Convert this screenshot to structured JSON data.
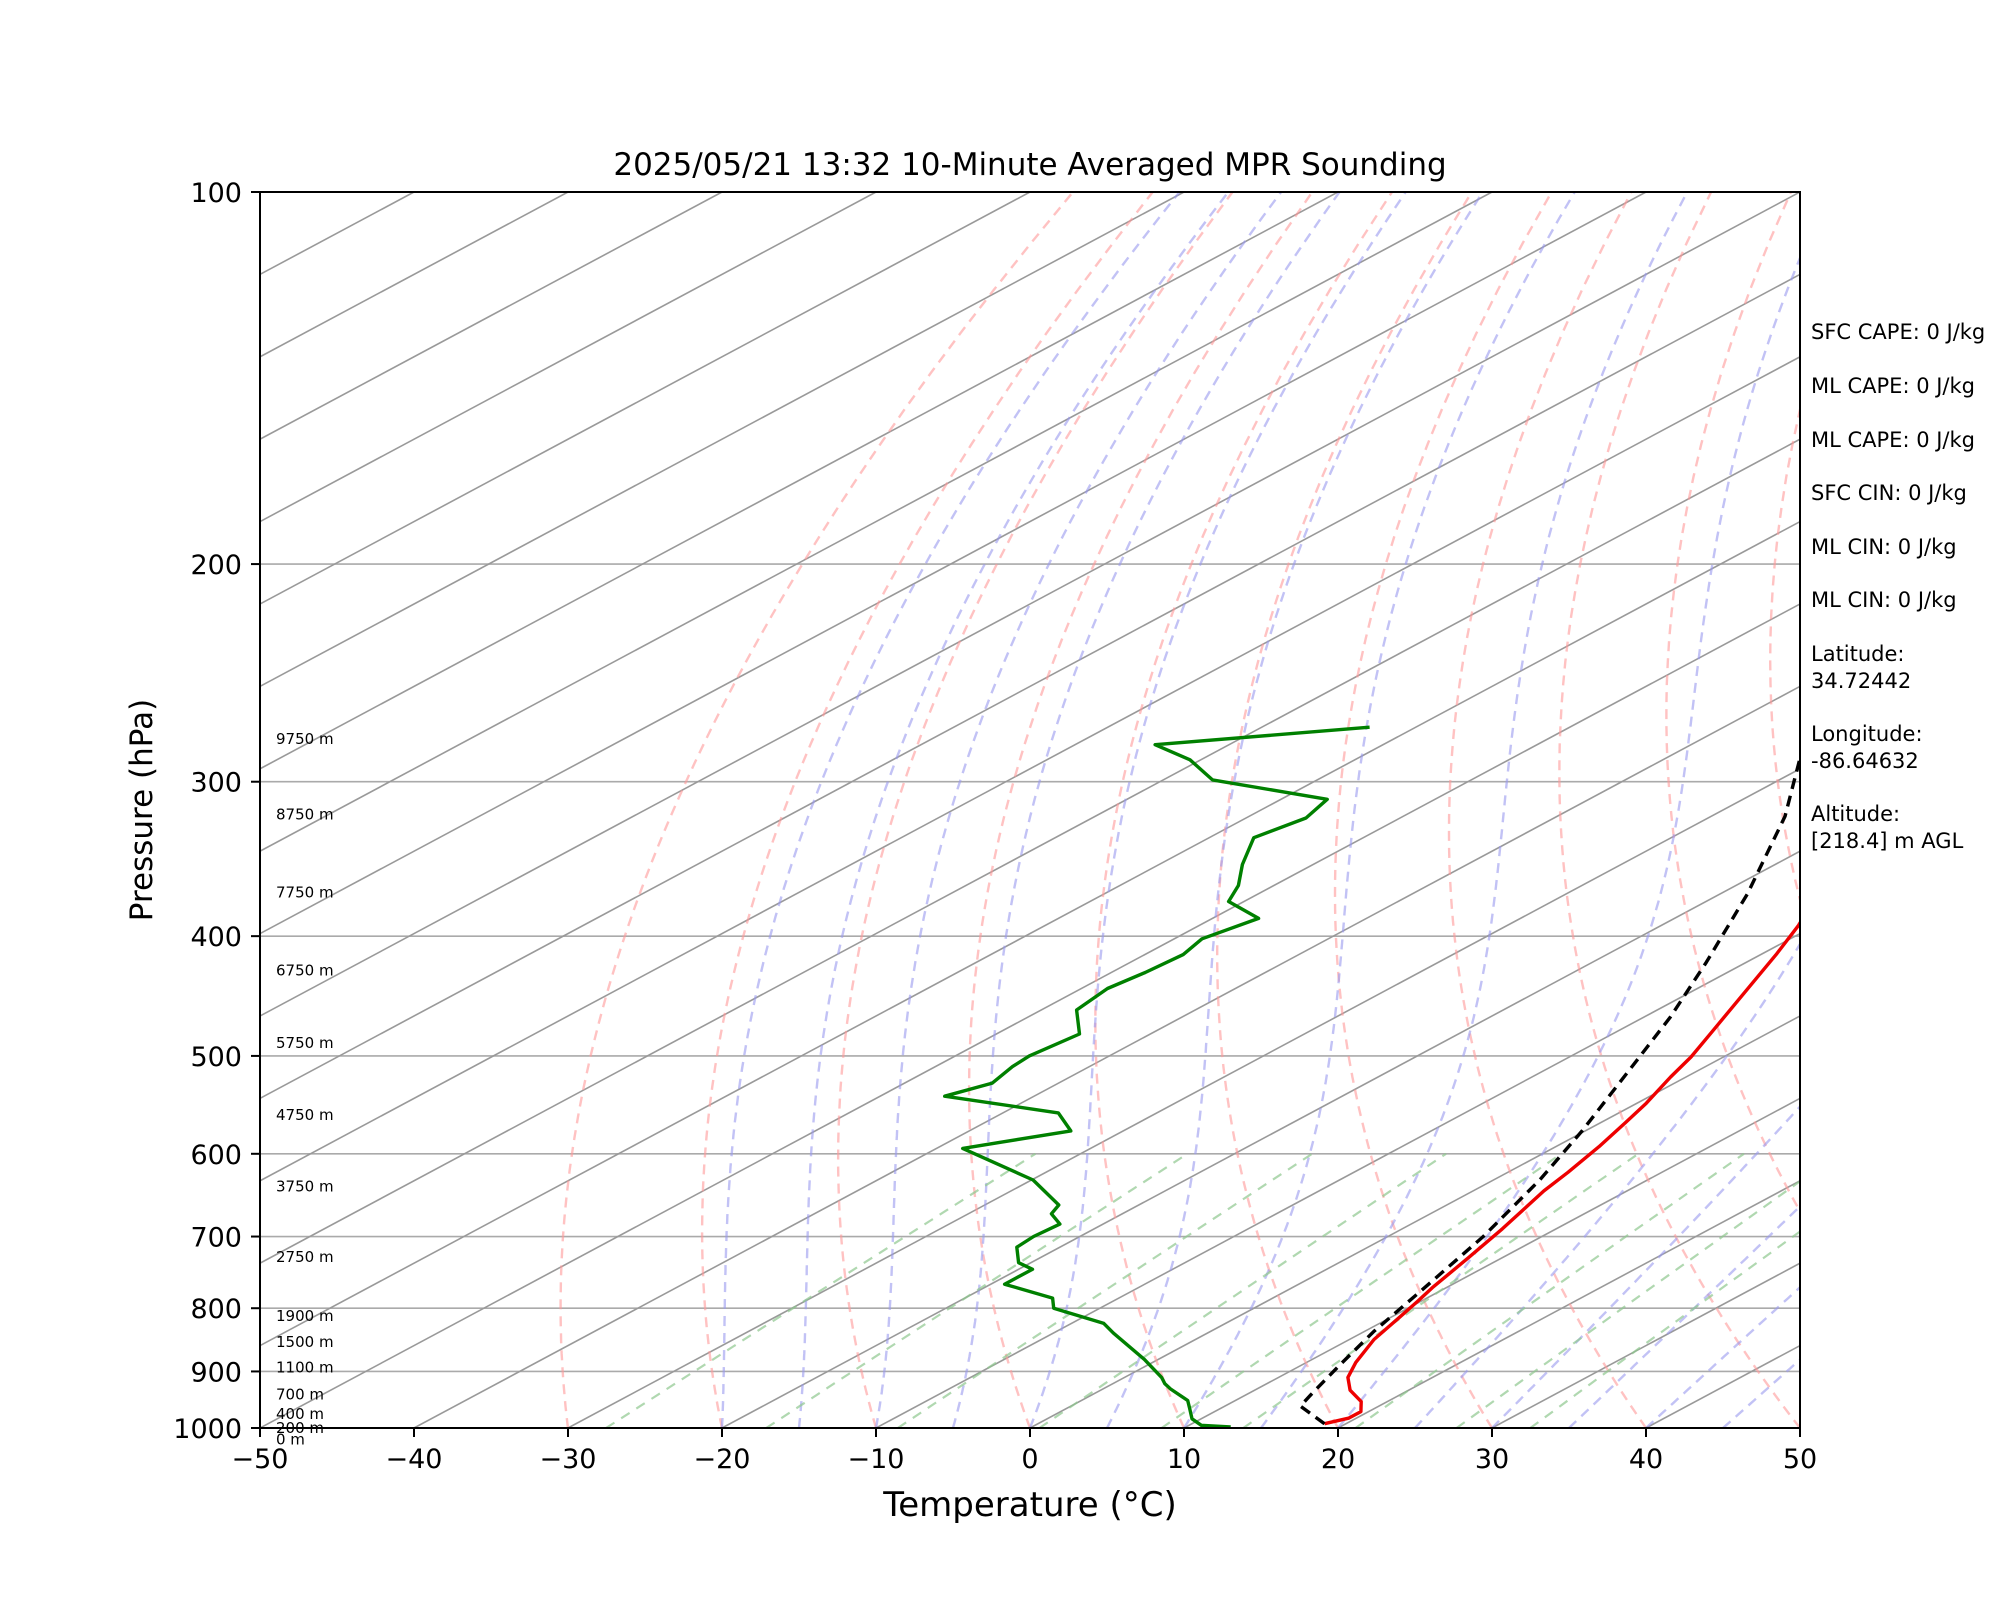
{
  "chart_data": {
    "type": "line",
    "title": "2025/05/21 13:32 10-Minute Averaged MPR Sounding",
    "xlabel": "Temperature (°C)",
    "ylabel": "Pressure (hPa)",
    "xlim": [
      -50,
      50
    ],
    "ylim": [
      1000,
      100
    ],
    "yscale": "log",
    "x_ticks": [
      "−50",
      "−40",
      "−30",
      "−20",
      "−10",
      "0",
      "10",
      "20",
      "30",
      "40",
      "50"
    ],
    "y_ticks": [
      "100",
      "200",
      "300",
      "400",
      "500",
      "600",
      "700",
      "800",
      "900",
      "1000"
    ],
    "skew_per_decade_C": 150,
    "grid": true,
    "height_labels": [
      {
        "p": 278,
        "text": "9750 m"
      },
      {
        "p": 320,
        "text": "8750 m"
      },
      {
        "p": 370,
        "text": "7750 m"
      },
      {
        "p": 428,
        "text": "6750 m"
      },
      {
        "p": 490,
        "text": "5750 m"
      },
      {
        "p": 560,
        "text": "4750 m"
      },
      {
        "p": 640,
        "text": "3750 m"
      },
      {
        "p": 730,
        "text": "2750 m"
      },
      {
        "p": 815,
        "text": "1900 m"
      },
      {
        "p": 855,
        "text": "1500 m"
      },
      {
        "p": 897,
        "text": "1100 m"
      },
      {
        "p": 943,
        "text": "700 m"
      },
      {
        "p": 978,
        "text": "400 m"
      },
      {
        "p": 1004,
        "text": "200 m"
      },
      {
        "p": 1025,
        "text": "0 m"
      }
    ],
    "series": [
      {
        "color": "#ee0000",
        "style": "solid",
        "points": [
          [
            18.6,
            992
          ],
          [
            19.5,
            982
          ],
          [
            19.5,
            970
          ],
          [
            18.3,
            952
          ],
          [
            16.2,
            932
          ],
          [
            14.5,
            910
          ],
          [
            13.2,
            885
          ],
          [
            11.6,
            848
          ],
          [
            10.6,
            815
          ],
          [
            9.8,
            790
          ],
          [
            9.1,
            770
          ],
          [
            7.8,
            728
          ],
          [
            6.5,
            690
          ],
          [
            4.6,
            643
          ],
          [
            3.9,
            621
          ],
          [
            2.8,
            592
          ],
          [
            1.6,
            566
          ],
          [
            0.6,
            546
          ],
          [
            -1.0,
            520
          ],
          [
            -2.1,
            501
          ],
          [
            -3.8,
            478
          ],
          [
            -6.8,
            440
          ],
          [
            -9.0,
            414
          ],
          [
            -11.1,
            392
          ],
          [
            -14.5,
            363
          ],
          [
            -17.5,
            338
          ],
          [
            -20.4,
            313
          ],
          [
            -22.4,
            296
          ],
          [
            -25.0,
            279
          ],
          [
            -25.7,
            271
          ],
          [
            -26.3,
            265
          ]
        ]
      },
      {
        "color": "#000000",
        "style": "dashed",
        "points": [
          [
            18.6,
            992
          ],
          [
            14.9,
            960
          ],
          [
            14.2,
            940
          ],
          [
            12.5,
            890
          ],
          [
            10.6,
            835
          ],
          [
            8.6,
            770
          ],
          [
            6.2,
            700
          ],
          [
            3.0,
            630
          ],
          [
            -0.2,
            575
          ],
          [
            -4.4,
            515
          ],
          [
            -8.3,
            465
          ],
          [
            -12.6,
            420
          ],
          [
            -18.2,
            370
          ],
          [
            -25.2,
            320
          ],
          [
            -32.7,
            280
          ],
          [
            -36.1,
            264
          ]
        ]
      },
      {
        "color": "#008000",
        "style": "solid",
        "points": [
          [
            12.9,
            998
          ],
          [
            10.8,
            995
          ],
          [
            9.4,
            983
          ],
          [
            7.9,
            963
          ],
          [
            6.9,
            950
          ],
          [
            4.4,
            930
          ],
          [
            3.4,
            921
          ],
          [
            2.4,
            910
          ],
          [
            -0.9,
            880
          ],
          [
            -6.1,
            838
          ],
          [
            -7.9,
            823
          ],
          [
            -13.0,
            800
          ],
          [
            -14.3,
            785
          ],
          [
            -19.1,
            765
          ],
          [
            -19.1,
            744
          ],
          [
            -20.8,
            735
          ],
          [
            -22.8,
            714
          ],
          [
            -23.0,
            700
          ],
          [
            -22.8,
            684
          ],
          [
            -24.6,
            671
          ],
          [
            -25.2,
            660
          ],
          [
            -29.9,
            630
          ],
          [
            -38.3,
            594
          ],
          [
            -33.4,
            575
          ],
          [
            -36.4,
            556
          ],
          [
            -45.8,
            539
          ],
          [
            -44.3,
            526
          ],
          [
            -45.0,
            510
          ],
          [
            -45.2,
            500
          ],
          [
            -44.6,
            480
          ],
          [
            -47.7,
            459
          ],
          [
            -48.3,
            441
          ],
          [
            -47.8,
            428
          ],
          [
            -47.5,
            414
          ],
          [
            -48.2,
            402
          ],
          [
            -47.0,
            387
          ],
          [
            -51.0,
            375
          ],
          [
            -52.3,
            364
          ],
          [
            -54.6,
            350
          ],
          [
            -57.1,
            333
          ],
          [
            -56.1,
            321
          ],
          [
            -57.0,
            310
          ],
          [
            -66.8,
            299
          ],
          [
            -70.7,
            288
          ],
          [
            -74.8,
            280
          ],
          [
            -63.0,
            271
          ]
        ]
      }
    ],
    "stats": [
      "SFC CAPE: 0 J/kg",
      "ML CAPE: 0 J/kg",
      "ML CAPE: 0 J/kg",
      "SFC CIN: 0 J/kg",
      "ML CIN: 0 J/kg",
      "ML CIN: 0 J/kg"
    ],
    "location": {
      "latitude_label": "Latitude:",
      "latitude": "34.72442",
      "longitude_label": "Longitude:",
      "longitude": "-86.64632",
      "altitude_label": "Altitude:",
      "altitude": "[218.4] m AGL"
    },
    "colors": {
      "dry_adiabat": "#ff9999",
      "moist_adiabat": "#9999ee",
      "mixing_ratio": "#8ec78e",
      "isotherm": "#999999",
      "isobar": "#aaaaaa"
    }
  }
}
